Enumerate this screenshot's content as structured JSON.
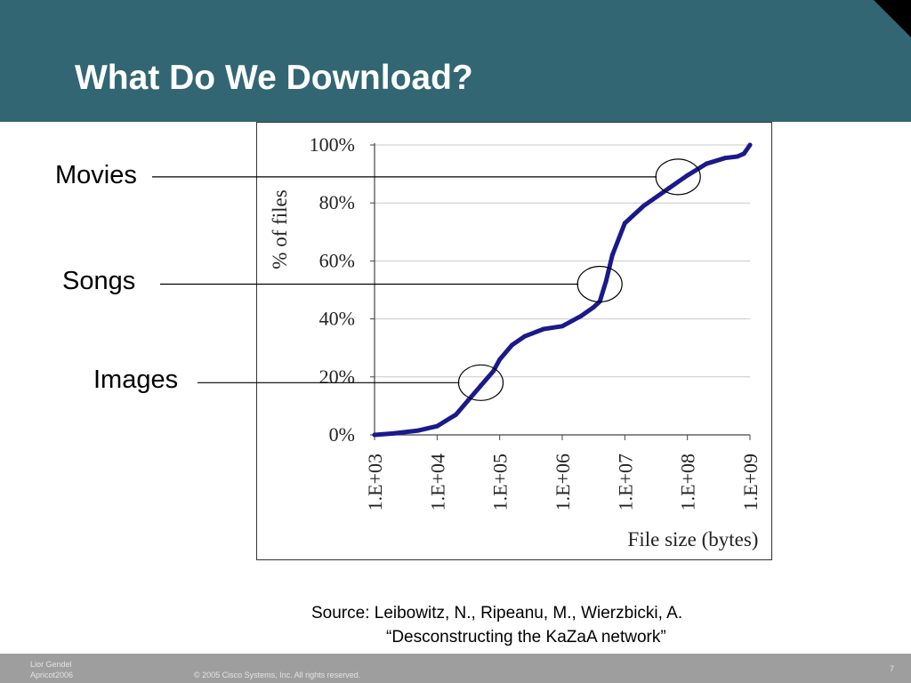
{
  "slide": {
    "title": "What Do We Download?",
    "labels": {
      "movies": "Movies",
      "songs": "Songs",
      "images": "Images"
    },
    "source_line1": "Source: Leibowitz, N., Ripeanu, M., Wierzbicki, A.",
    "source_line2": "“Desconstructing the KaZaA network”",
    "footer": {
      "author": "Lior Gendel",
      "event": "Apricot2006",
      "copyright": "© 2005 Cisco Systems, Inc. All rights reserved.",
      "page": "7"
    },
    "colors": {
      "header": "#326673",
      "series": "#1a1a8c",
      "footer": "#9e9e9e"
    }
  },
  "chart_data": {
    "type": "line",
    "xlabel": "File size (bytes)",
    "ylabel": "% of files",
    "x_scale": "log10",
    "xlim": [
      1000,
      1000000000
    ],
    "ylim": [
      0,
      100
    ],
    "x_ticks": [
      "1.E+03",
      "1.E+04",
      "1.E+05",
      "1.E+06",
      "1.E+07",
      "1.E+08",
      "1.E+09"
    ],
    "y_ticks": [
      "0%",
      "20%",
      "40%",
      "60%",
      "80%",
      "100%"
    ],
    "grid": true,
    "series": [
      {
        "x": [
          1000,
          2000,
          5000,
          10000,
          20000,
          31600,
          50000,
          79400,
          100000,
          158000,
          251000,
          501000,
          1000000,
          2000000,
          3160000,
          3980000,
          5010000,
          6310000,
          10000000,
          20000000,
          50000000,
          100000000,
          200000000,
          400000000,
          630000000,
          800000000,
          1000000000
        ],
        "y": [
          0,
          0.5,
          1.5,
          3,
          7,
          12,
          17,
          22,
          26,
          31,
          34,
          36.5,
          37.5,
          41,
          44,
          46,
          53,
          62,
          73,
          79,
          85,
          89.5,
          93.5,
          95.5,
          96,
          97,
          100
        ]
      }
    ],
    "annotations": [
      {
        "label": "Images",
        "x": 50000,
        "y": 18
      },
      {
        "label": "Songs",
        "x": 3980000,
        "y": 52
      },
      {
        "label": "Movies",
        "x": 71000000,
        "y": 89
      }
    ]
  }
}
